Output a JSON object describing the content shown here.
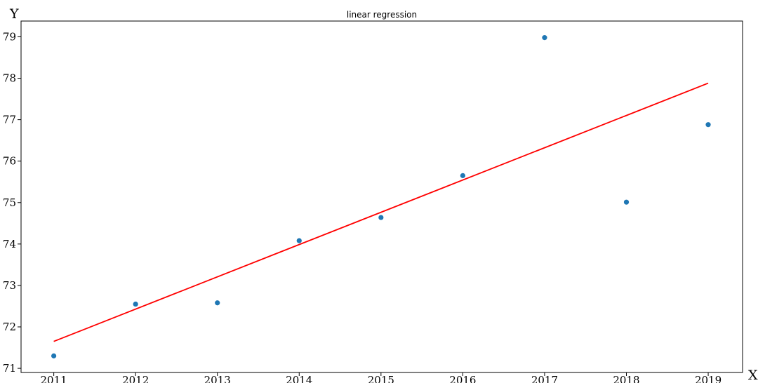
{
  "chart_data": {
    "type": "scatter",
    "title": "linear regression",
    "xlabel": "X",
    "ylabel": "Y",
    "xlim": [
      2010.6,
      2019.42
    ],
    "ylim": [
      70.9,
      79.38
    ],
    "x_ticks": [
      2011,
      2012,
      2013,
      2014,
      2015,
      2016,
      2017,
      2018,
      2019
    ],
    "y_ticks": [
      71,
      72,
      73,
      74,
      75,
      76,
      77,
      78,
      79
    ],
    "grid": false,
    "legend": "none",
    "series": [
      {
        "type": "scatter",
        "color": "#1f77b4",
        "x": [
          2011,
          2012,
          2013,
          2014,
          2015,
          2016,
          2017,
          2018,
          2019
        ],
        "y": [
          71.3,
          72.55,
          72.58,
          74.08,
          74.64,
          75.65,
          78.98,
          75.01,
          76.88
        ]
      },
      {
        "type": "line",
        "color": "#ff0000",
        "x": [
          2011,
          2019
        ],
        "y": [
          71.65,
          77.88
        ]
      }
    ]
  }
}
